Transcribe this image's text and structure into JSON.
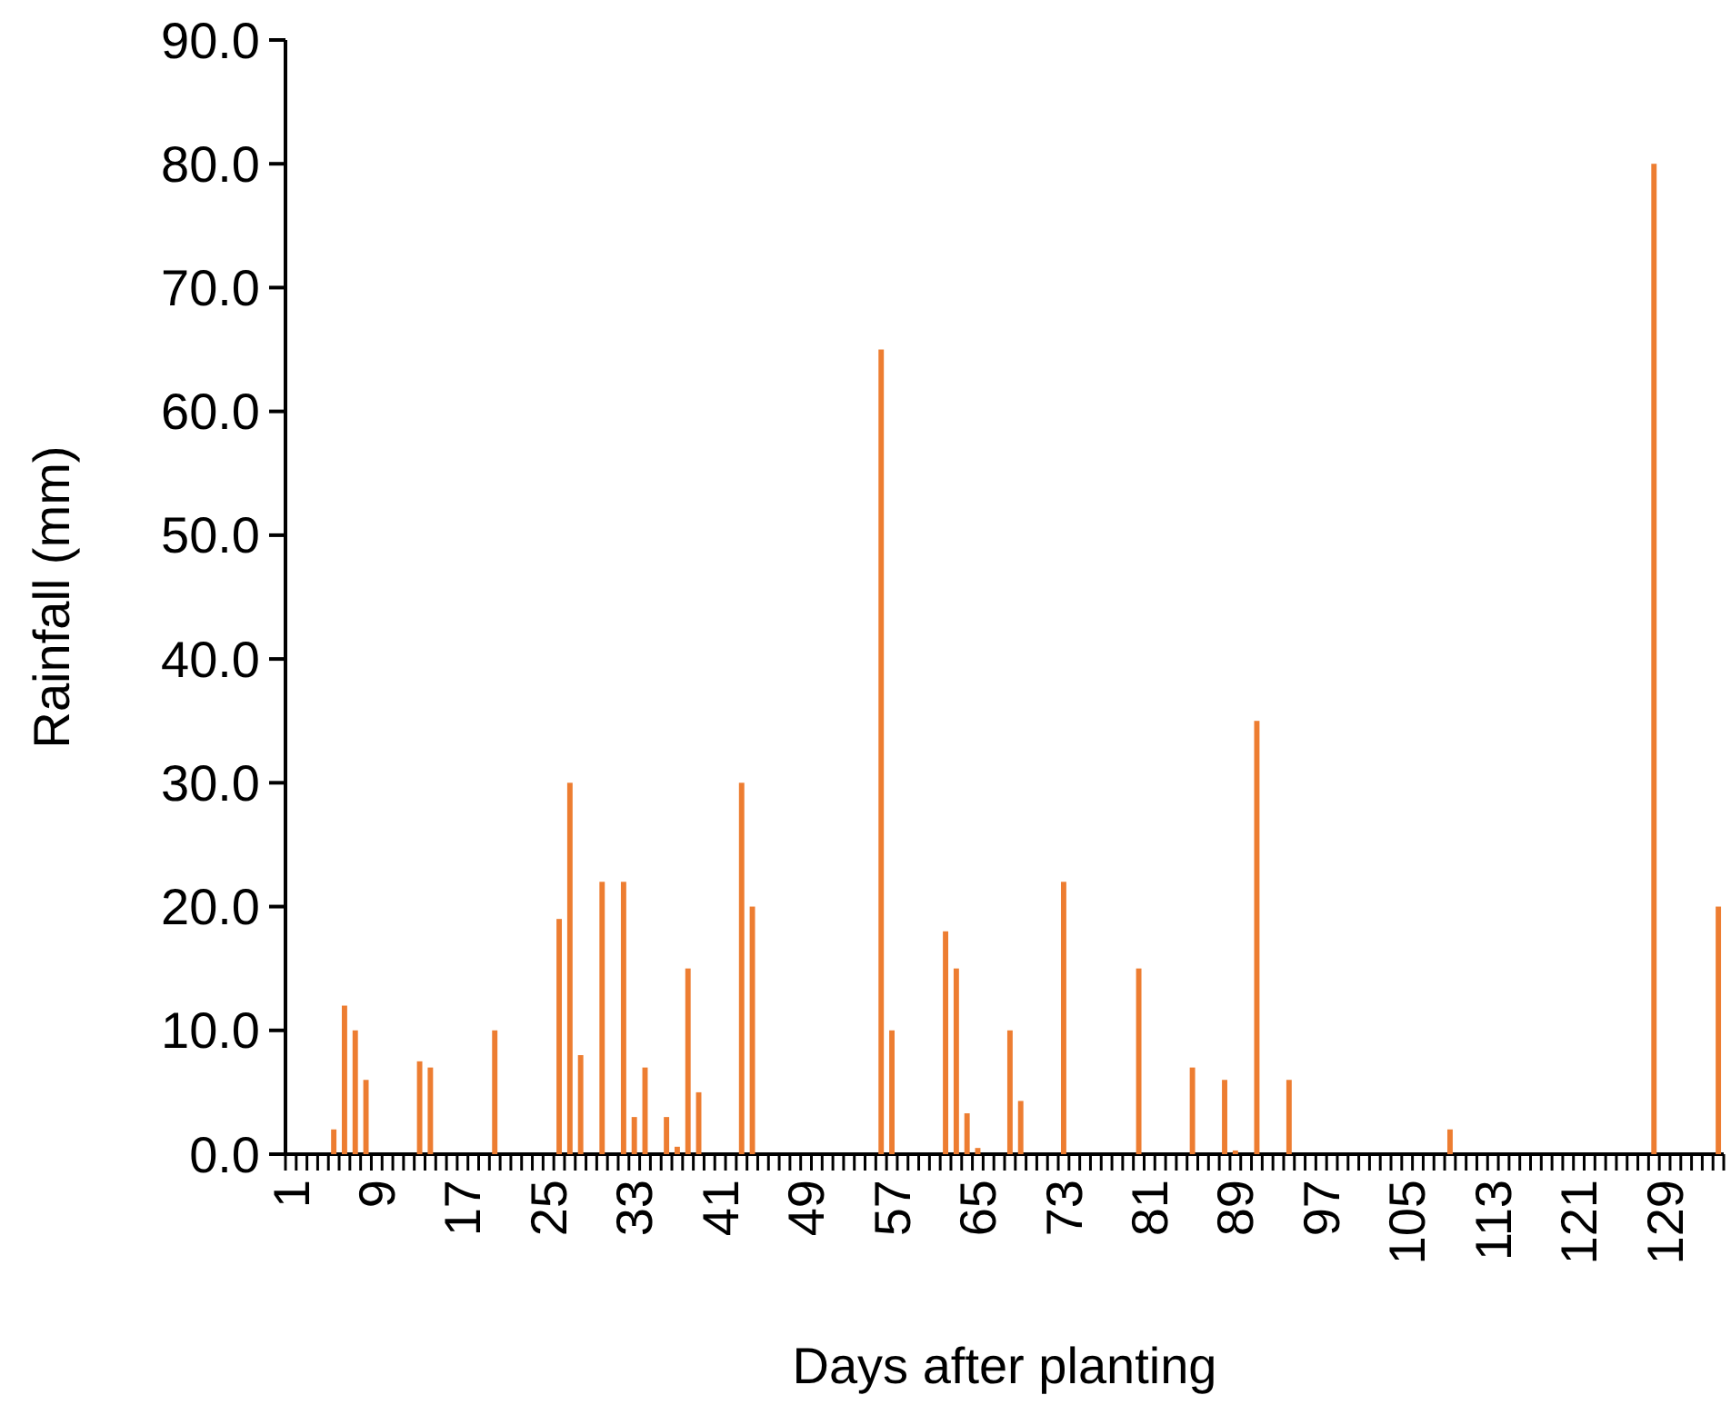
{
  "chart_data": {
    "type": "bar",
    "xlabel": "Days after planting",
    "ylabel": "Rainfall (mm)",
    "categories": [
      "1",
      null,
      null,
      null,
      null,
      null,
      null,
      null,
      "9",
      null,
      null,
      null,
      null,
      null,
      null,
      null,
      "17",
      null,
      null,
      null,
      null,
      null,
      null,
      null,
      "25",
      null,
      null,
      null,
      null,
      null,
      null,
      null,
      "33",
      null,
      null,
      null,
      null,
      null,
      null,
      null,
      "41",
      null,
      null,
      null,
      null,
      null,
      null,
      null,
      "49",
      null,
      null,
      null,
      null,
      null,
      null,
      null,
      "57",
      null,
      null,
      null,
      null,
      null,
      null,
      null,
      "65",
      null,
      null,
      null,
      null,
      null,
      null,
      null,
      "73",
      null,
      null,
      null,
      null,
      null,
      null,
      null,
      "81",
      null,
      null,
      null,
      null,
      null,
      null,
      null,
      "89",
      null,
      null,
      null,
      null,
      null,
      null,
      null,
      "97",
      null,
      null,
      null,
      null,
      null,
      null,
      null,
      "105",
      null,
      null,
      null,
      null,
      null,
      null,
      null,
      "113",
      null,
      null,
      null,
      null,
      null,
      null,
      null,
      "121",
      null,
      null,
      null,
      null,
      null,
      null,
      null,
      "129",
      null,
      null,
      null,
      null,
      null
    ],
    "values": [
      0,
      0,
      0,
      0,
      2,
      12,
      10,
      6,
      0,
      0,
      0,
      0,
      7.5,
      7,
      0,
      0,
      0,
      0,
      0,
      10,
      0,
      0,
      0,
      0,
      0,
      19,
      30,
      8,
      0,
      22,
      0,
      22,
      3,
      7,
      0,
      3,
      0.6,
      15,
      5,
      0,
      0,
      0,
      30,
      20,
      0,
      0,
      0,
      0,
      0,
      0,
      0,
      0,
      0,
      0,
      0,
      65,
      10,
      0,
      0,
      0,
      0,
      18,
      15,
      3.3,
      0.5,
      0,
      0,
      10,
      4.3,
      0,
      0,
      0,
      22,
      0,
      0,
      0,
      0,
      0,
      0,
      15,
      0,
      0,
      0,
      0,
      7,
      0,
      0,
      6,
      0.3,
      0,
      35,
      0,
      0,
      6,
      0,
      0,
      0,
      0,
      0,
      0,
      0,
      0,
      0,
      0,
      0,
      0,
      0,
      0,
      2,
      0,
      0,
      0,
      0,
      0,
      0,
      0,
      0,
      0,
      0,
      0,
      0,
      0,
      0,
      0,
      0,
      0,
      0,
      80,
      0,
      0,
      0,
      0,
      0,
      20
    ],
    "color": "#ed7d31",
    "ylim": [
      0,
      90
    ],
    "yticks": [
      {
        "value": 0,
        "label": "0.0"
      },
      {
        "value": 10,
        "label": "10.0"
      },
      {
        "value": 20,
        "label": "20.0"
      },
      {
        "value": 30,
        "label": "30.0"
      },
      {
        "value": 40,
        "label": "40.0"
      },
      {
        "value": 50,
        "label": "50.0"
      },
      {
        "value": 60,
        "label": "60.0"
      },
      {
        "value": 70,
        "label": "70.0"
      },
      {
        "value": 80,
        "label": "80.0"
      },
      {
        "value": 90,
        "label": "90.0"
      }
    ]
  }
}
